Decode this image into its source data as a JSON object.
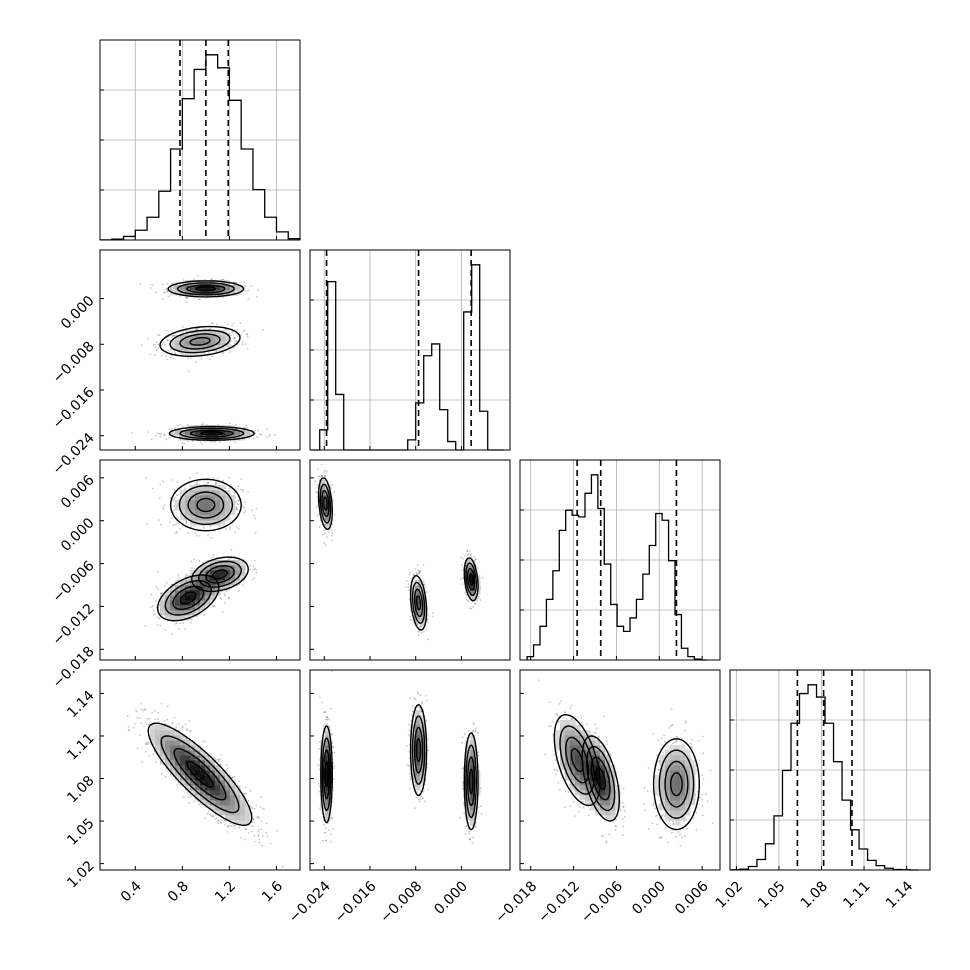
{
  "chart_data": {
    "type": "corner",
    "title": "",
    "parameters": [
      {
        "label": "",
        "range": [
          0.1,
          1.8
        ],
        "ticks": [
          0.4,
          0.8,
          1.2,
          1.6
        ],
        "tick_labels": [
          "0.4",
          "0.8",
          "1.2",
          "1.6"
        ],
        "quantiles": [
          0.78,
          1.0,
          1.19
        ],
        "histogram": {
          "bin_edges": [
            0.1,
            0.2,
            0.3,
            0.4,
            0.5,
            0.6,
            0.7,
            0.8,
            0.9,
            1.0,
            1.1,
            1.2,
            1.3,
            1.4,
            1.5,
            1.6,
            1.7,
            1.8
          ],
          "counts": [
            1,
            5,
            22,
            60,
            140,
            300,
            560,
            870,
            1050,
            1140,
            1060,
            860,
            560,
            310,
            140,
            50,
            8
          ]
        }
      },
      {
        "label": "",
        "range": [
          -0.0265,
          0.0085
        ],
        "ticks": [
          -0.024,
          -0.016,
          -0.008,
          0.0
        ],
        "tick_labels": [
          "−0.024",
          "−0.016",
          "−0.008",
          "0.000"
        ],
        "quantiles": [
          -0.0236,
          -0.0075,
          0.0017
        ],
        "histogram": {
          "bin_edges": [
            -0.0262,
            -0.0248,
            -0.0234,
            -0.022,
            -0.0206,
            -0.0192,
            -0.0178,
            -0.0164,
            -0.015,
            -0.0136,
            -0.0122,
            -0.0108,
            -0.0094,
            -0.008,
            -0.0066,
            -0.0052,
            -0.0038,
            -0.0024,
            -0.001,
            0.0004,
            0.0018,
            0.0032,
            0.0046,
            0.006,
            0.0074
          ],
          "counts": [
            0,
            120,
            1000,
            330,
            0,
            0,
            0,
            0,
            0,
            0,
            0,
            0,
            60,
            280,
            560,
            630,
            240,
            50,
            0,
            820,
            1100,
            230,
            0,
            0
          ]
        }
      },
      {
        "label": "",
        "range": [
          -0.0195,
          0.0085
        ],
        "ticks": [
          -0.018,
          -0.012,
          -0.006,
          0.0,
          0.006
        ],
        "tick_labels": [
          "−0.018",
          "−0.012",
          "−0.006",
          "0.000",
          "0.006"
        ],
        "quantiles": [
          -0.0115,
          -0.0082,
          0.0024
        ],
        "histogram": {
          "bin_edges": [
            -0.0185,
            -0.0176,
            -0.0167,
            -0.0158,
            -0.0149,
            -0.014,
            -0.0131,
            -0.0122,
            -0.0113,
            -0.0104,
            -0.0095,
            -0.0086,
            -0.0077,
            -0.0068,
            -0.0059,
            -0.005,
            -0.0041,
            -0.0032,
            -0.0023,
            -0.0014,
            -0.0005,
            0.0004,
            0.0013,
            0.0022,
            0.0031,
            0.004,
            0.0049,
            0.0058,
            0.0067
          ],
          "counts": [
            20,
            90,
            200,
            360,
            530,
            770,
            890,
            860,
            850,
            990,
            1100,
            900,
            570,
            330,
            200,
            170,
            250,
            360,
            510,
            680,
            870,
            830,
            590,
            270,
            70,
            20,
            5,
            0
          ]
        }
      },
      {
        "label": "",
        "range": [
          1.0155,
          1.1565
        ],
        "ticks": [
          1.02,
          1.05,
          1.08,
          1.11,
          1.14
        ],
        "tick_labels": [
          "1.02",
          "1.05",
          "1.08",
          "1.11",
          "1.14"
        ],
        "quantiles": [
          1.063,
          1.0815,
          1.1015
        ],
        "histogram": {
          "bin_edges": [
            1.0165,
            1.0225,
            1.0285,
            1.0345,
            1.0405,
            1.0465,
            1.0525,
            1.0585,
            1.0645,
            1.0705,
            1.0765,
            1.0825,
            1.0885,
            1.0945,
            1.1005,
            1.1065,
            1.1125,
            1.1185,
            1.1245,
            1.1305,
            1.1365,
            1.1425,
            1.1485
          ],
          "counts": [
            1,
            5,
            20,
            60,
            150,
            310,
            570,
            840,
            1010,
            1060,
            990,
            840,
            620,
            400,
            230,
            120,
            55,
            25,
            10,
            3,
            1,
            0
          ]
        }
      }
    ],
    "pair_clusters": [
      {
        "x_param": 0,
        "y_param": 1,
        "clusters": [
          {
            "x": 1.0,
            "y": 0.0017,
            "sx": 0.16,
            "sy": 0.0007,
            "rho": 0.0,
            "weight": 0.34
          },
          {
            "x": 0.95,
            "y": -0.0075,
            "sx": 0.17,
            "sy": 0.0013,
            "rho": 0.25,
            "weight": 0.33
          },
          {
            "x": 1.05,
            "y": -0.0236,
            "sx": 0.18,
            "sy": 0.0006,
            "rho": 0.0,
            "weight": 0.33
          }
        ]
      },
      {
        "x_param": 0,
        "y_param": 2,
        "clusters": [
          {
            "x": 1.0,
            "y": 0.0022,
            "sx": 0.15,
            "sy": 0.0018,
            "rho": 0.0,
            "weight": 0.34
          },
          {
            "x": 0.85,
            "y": -0.0108,
            "sx": 0.13,
            "sy": 0.0016,
            "rho": 0.45,
            "weight": 0.4
          },
          {
            "x": 1.12,
            "y": -0.0075,
            "sx": 0.12,
            "sy": 0.0012,
            "rho": 0.3,
            "weight": 0.26
          }
        ]
      },
      {
        "x_param": 0,
        "y_param": 3,
        "clusters": [
          {
            "x": 0.95,
            "y": 1.083,
            "sx": 0.22,
            "sy": 0.018,
            "rho": -0.85,
            "weight": 1.0
          }
        ]
      },
      {
        "x_param": 1,
        "y_param": 2,
        "clusters": [
          {
            "x": -0.0238,
            "y": 0.0024,
            "sx": 0.0006,
            "sy": 0.0018,
            "rho": -0.3,
            "weight": 0.33
          },
          {
            "x": -0.0075,
            "y": -0.0115,
            "sx": 0.0007,
            "sy": 0.0019,
            "rho": -0.3,
            "weight": 0.33
          },
          {
            "x": 0.0017,
            "y": -0.0082,
            "sx": 0.0006,
            "sy": 0.0015,
            "rho": -0.3,
            "weight": 0.34
          }
        ]
      },
      {
        "x_param": 1,
        "y_param": 3,
        "clusters": [
          {
            "x": -0.0236,
            "y": 1.083,
            "sx": 0.0005,
            "sy": 0.017,
            "rho": 0.0,
            "weight": 0.33
          },
          {
            "x": -0.0075,
            "y": 1.1,
            "sx": 0.0007,
            "sy": 0.016,
            "rho": 0.0,
            "weight": 0.33
          },
          {
            "x": 0.0017,
            "y": 1.078,
            "sx": 0.0006,
            "sy": 0.017,
            "rho": 0.0,
            "weight": 0.34
          }
        ]
      },
      {
        "x_param": 2,
        "y_param": 3,
        "clusters": [
          {
            "x": -0.0115,
            "y": 1.093,
            "sx": 0.0016,
            "sy": 0.016,
            "rho": -0.5,
            "weight": 0.34
          },
          {
            "x": -0.0082,
            "y": 1.08,
            "sx": 0.0013,
            "sy": 0.015,
            "rho": -0.5,
            "weight": 0.33
          },
          {
            "x": 0.0024,
            "y": 1.076,
            "sx": 0.0016,
            "sy": 0.016,
            "rho": 0.0,
            "weight": 0.33
          }
        ]
      }
    ],
    "contour_levels": [
      0.5,
      1.0,
      1.5,
      2.0
    ],
    "grid": true,
    "colors": {
      "line": "#000000",
      "grid": "#b0b0b0",
      "scatter": "#000000"
    }
  }
}
